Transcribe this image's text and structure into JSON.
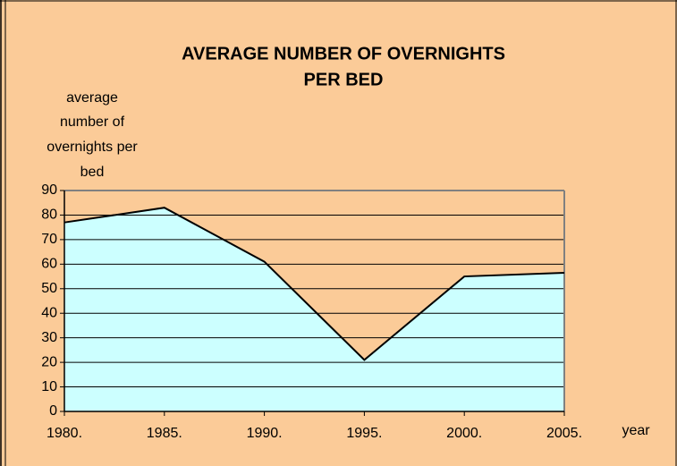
{
  "chart_data": {
    "type": "area",
    "title": [
      "AVERAGE NUMBER OF OVERNIGHTS",
      "PER BED"
    ],
    "y_label": [
      "average",
      "number of",
      "overnights per",
      "bed"
    ],
    "x_label": "year",
    "categories": [
      "1980.",
      "1985.",
      "1990.",
      "1995.",
      "2000.",
      "2005."
    ],
    "values": [
      77,
      83,
      61,
      21,
      55,
      56.5
    ],
    "color": "#ccffff",
    "line_color": "#000000",
    "ylim": [
      0,
      90
    ],
    "yticks": [
      0,
      10,
      20,
      30,
      40,
      50,
      60,
      70,
      80,
      90
    ],
    "grid": true
  }
}
